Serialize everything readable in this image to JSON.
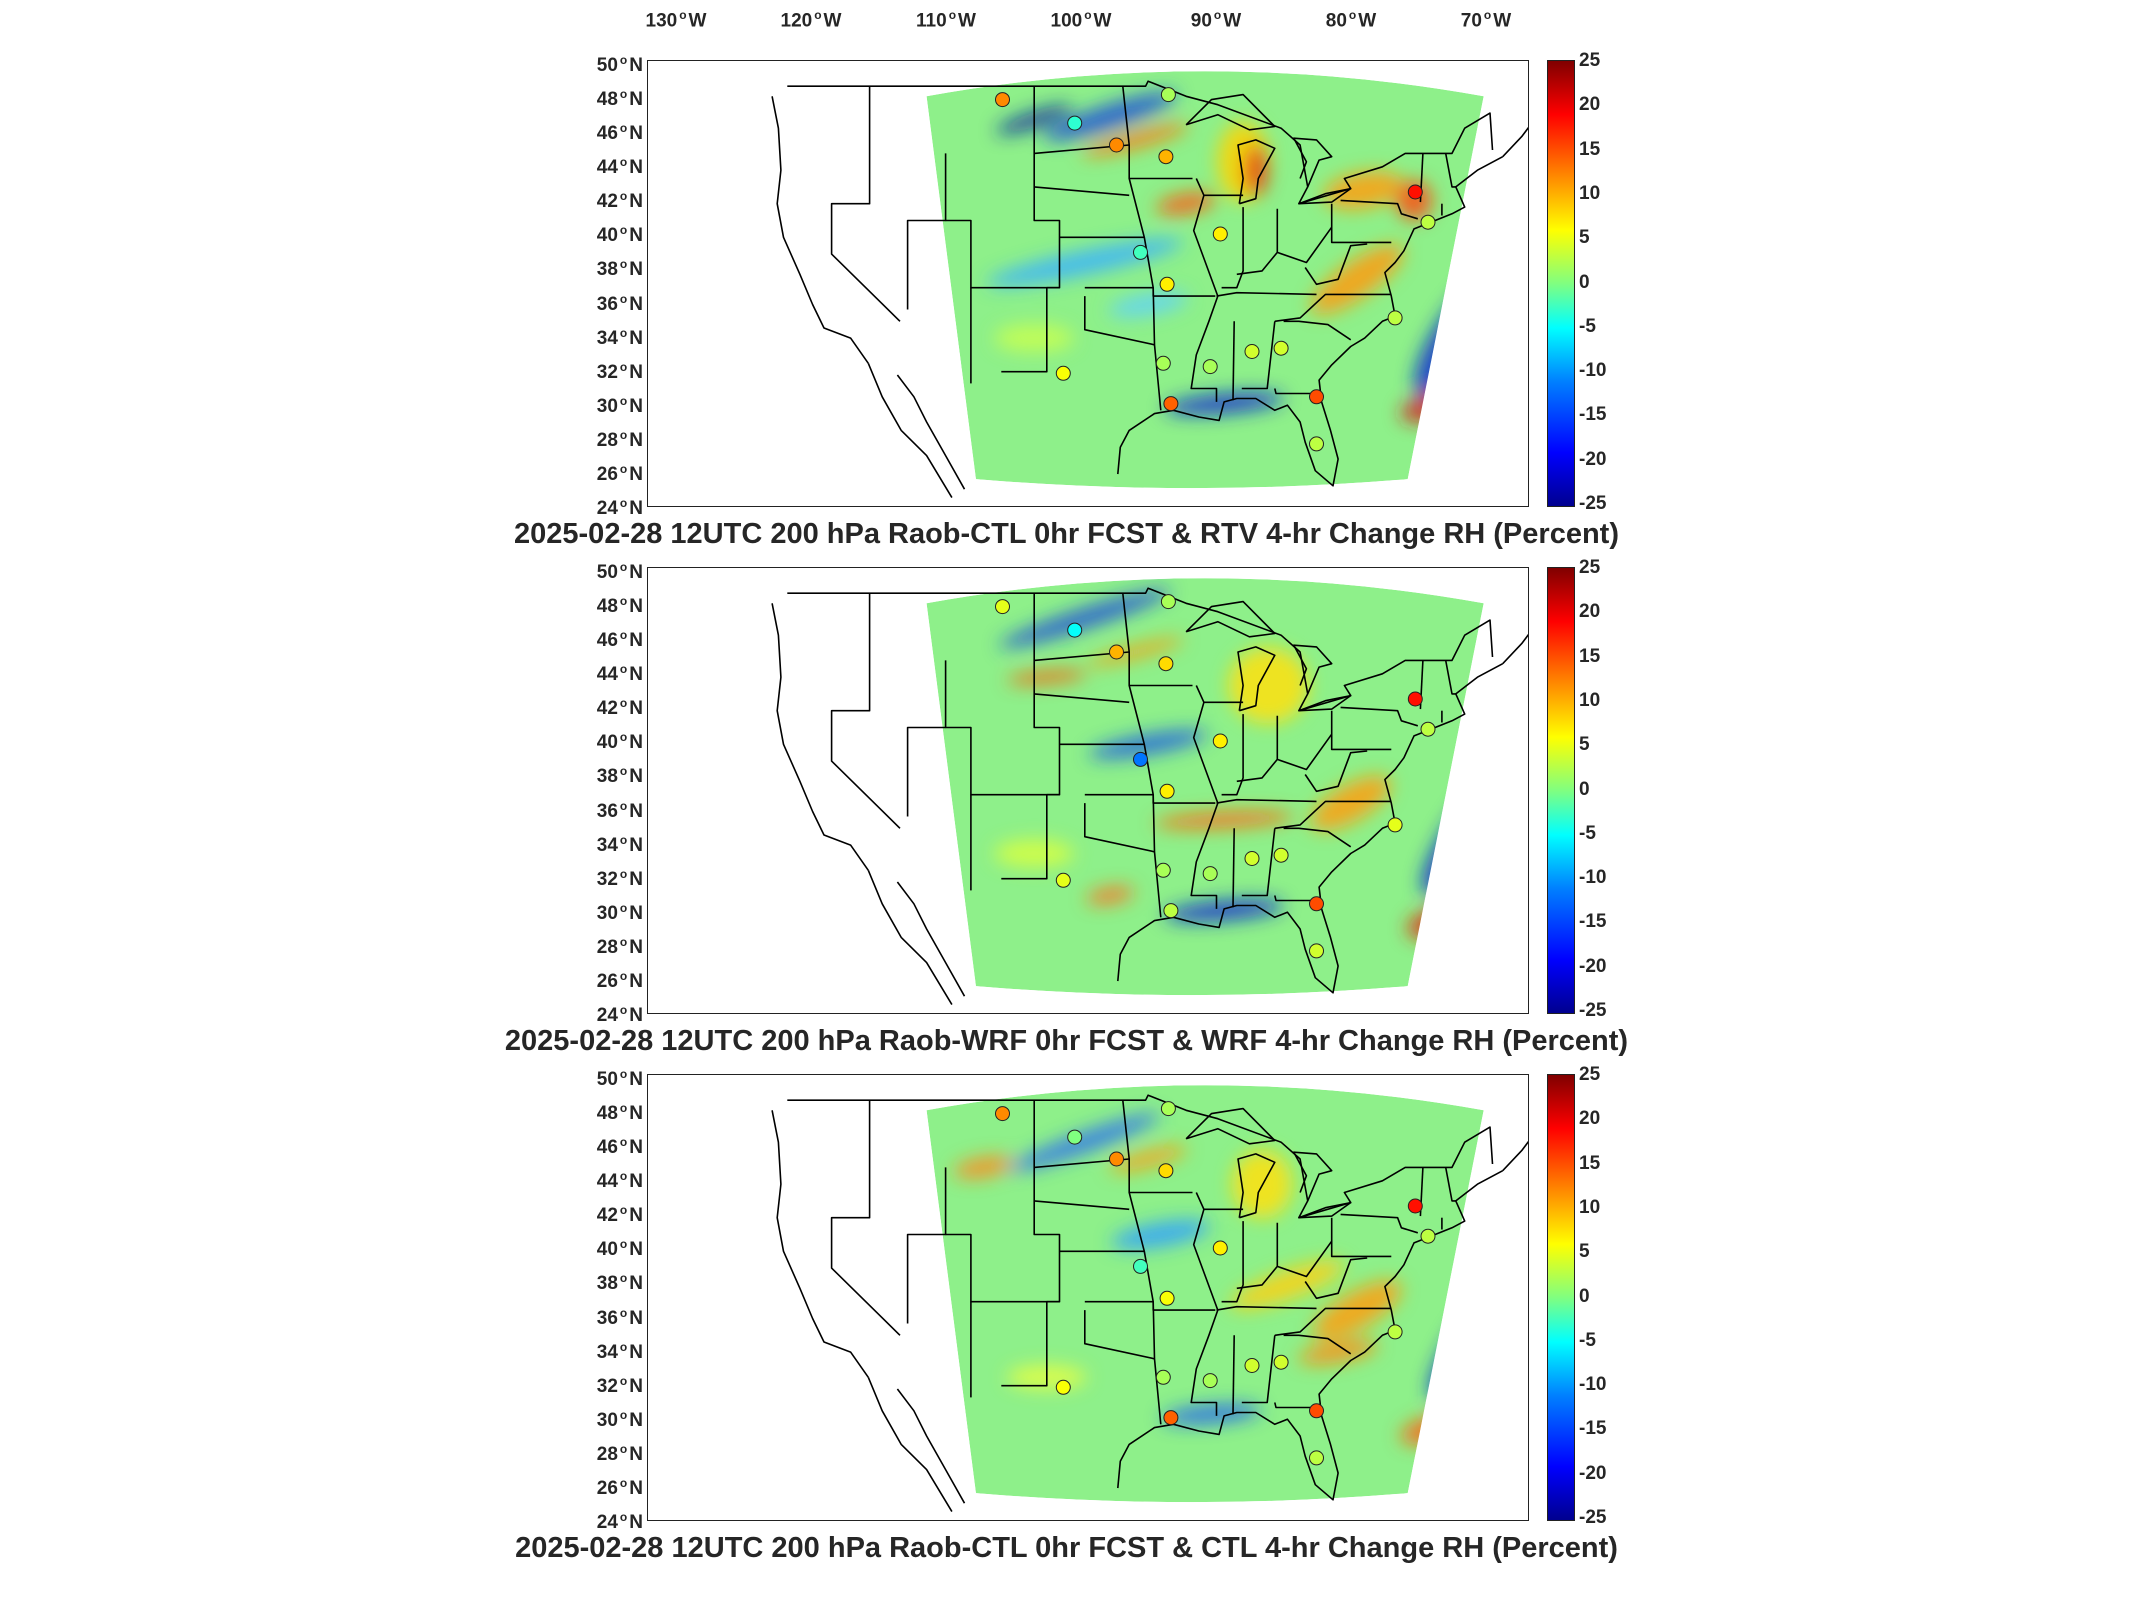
{
  "longitude_labels": [
    "130",
    "120",
    "110",
    "100",
    "90",
    "80",
    "70"
  ],
  "longitude_suffix": "W",
  "latitude_labels": [
    "50",
    "48",
    "46",
    "44",
    "42",
    "40",
    "38",
    "36",
    "34",
    "32",
    "30",
    "28",
    "26",
    "24"
  ],
  "latitude_suffix": "N",
  "colorbar": {
    "ticks": [
      "25",
      "20",
      "15",
      "10",
      "5",
      "0",
      "-5",
      "-10",
      "-15",
      "-20",
      "-25"
    ],
    "range": [
      -25,
      25
    ],
    "colormap": "jet",
    "colors": [
      "#00008f",
      "#0000ff",
      "#0080ff",
      "#00ffff",
      "#80ff80",
      "#ffff00",
      "#ff8000",
      "#ff0000",
      "#800000"
    ]
  },
  "panels": [
    {
      "title": "2025-02-28 12UTC 200 hPa Raob-CTL 0hr FCST & RTV 4-hr Change RH (Percent)"
    },
    {
      "title": "2025-02-28 12UTC 200 hPa Raob-WRF 0hr FCST & WRF 4-hr Change RH (Percent)"
    },
    {
      "title": "2025-02-28 12UTC 200 hPa Raob-CTL 0hr FCST & CTL 4-hr Change RH (Percent)"
    }
  ],
  "raob_stations": [
    {
      "lon": -106.5,
      "lat": 48.2,
      "values": [
        12,
        5,
        12
      ]
    },
    {
      "lon": -100.8,
      "lat": 46.8,
      "values": [
        -4,
        -6,
        0
      ]
    },
    {
      "lon": -97.5,
      "lat": 45.5,
      "values": [
        12,
        10,
        12
      ]
    },
    {
      "lon": -93.6,
      "lat": 44.8,
      "values": [
        10,
        8,
        8
      ]
    },
    {
      "lon": -93.4,
      "lat": 48.5,
      "values": [
        2,
        2,
        2
      ]
    },
    {
      "lon": -89.3,
      "lat": 40.2,
      "values": [
        7,
        7,
        7
      ]
    },
    {
      "lon": -95.6,
      "lat": 39.1,
      "values": [
        -3,
        -13,
        -3
      ]
    },
    {
      "lon": -93.5,
      "lat": 37.2,
      "values": [
        7,
        7,
        6
      ]
    },
    {
      "lon": -73.9,
      "lat": 42.7,
      "values": [
        18,
        18,
        18
      ]
    },
    {
      "lon": -72.9,
      "lat": 40.9,
      "values": [
        3,
        3,
        3
      ]
    },
    {
      "lon": -75.5,
      "lat": 35.2,
      "values": [
        3,
        5,
        3
      ]
    },
    {
      "lon": -93.8,
      "lat": 32.5,
      "values": [
        2,
        2,
        2
      ]
    },
    {
      "lon": -90.1,
      "lat": 32.3,
      "values": [
        2,
        2,
        2
      ]
    },
    {
      "lon": -86.8,
      "lat": 33.2,
      "values": [
        4,
        4,
        4
      ]
    },
    {
      "lon": -84.5,
      "lat": 33.4,
      "values": [
        4,
        4,
        4
      ]
    },
    {
      "lon": -81.7,
      "lat": 30.5,
      "values": [
        15,
        15,
        15
      ]
    },
    {
      "lon": -93.2,
      "lat": 30.1,
      "values": [
        14,
        3,
        14
      ]
    },
    {
      "lon": -81.7,
      "lat": 27.7,
      "values": [
        3,
        4,
        3
      ]
    },
    {
      "lon": -101.7,
      "lat": 31.9,
      "values": [
        6,
        5,
        6
      ]
    }
  ]
}
